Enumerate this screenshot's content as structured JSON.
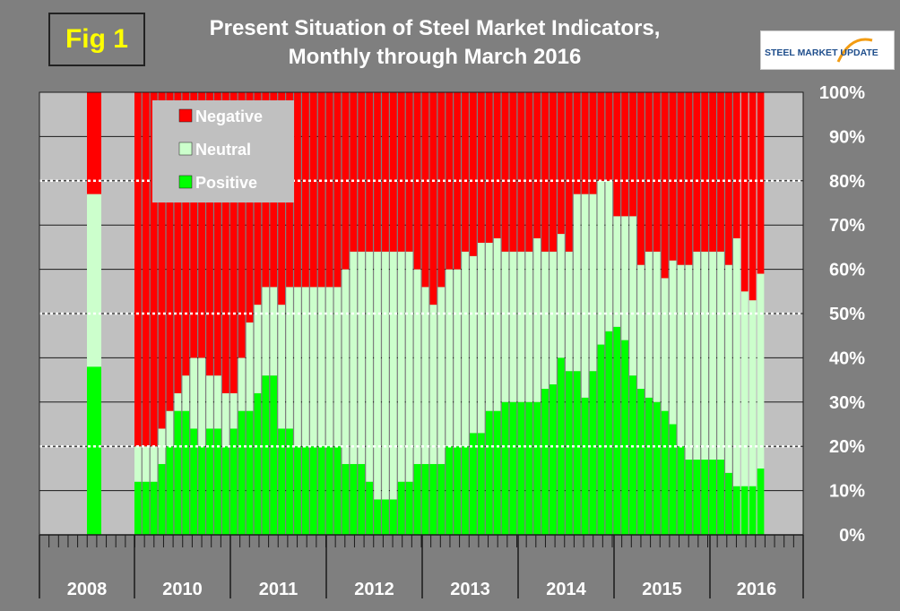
{
  "figure": {
    "badge": "Fig 1",
    "title_line1": "Present Situation of Steel Market Indicators,",
    "title_line2": "Monthly through March 2016",
    "logo_text": "STEEL MARKET UPDATE"
  },
  "colors": {
    "negative": "#ff0000",
    "neutral": "#ccffcc",
    "positive": "#00ff00",
    "plot_background_gray": "#c0c0c0",
    "figure_background": "#7f7f7f",
    "badge_text": "#ffff00"
  },
  "chart_data": {
    "type": "bar",
    "stacked": true,
    "ylim": [
      0,
      100
    ],
    "yticks": [
      "0%",
      "10%",
      "20%",
      "30%",
      "40%",
      "50%",
      "60%",
      "70%",
      "80%",
      "90%",
      "100%"
    ],
    "reference_lines": [
      20,
      50,
      80
    ],
    "legend": {
      "placement": "top-left",
      "entries": [
        "Negative",
        "Neutral",
        "Positive"
      ]
    },
    "year_labels": [
      "2008",
      "2010",
      "2011",
      "2012",
      "2013",
      "2014",
      "2015",
      "2016"
    ],
    "series": [
      {
        "name": "Positive",
        "values": [
          38,
          12,
          12,
          12,
          16,
          20,
          28,
          28,
          24,
          20,
          24,
          24,
          20,
          24,
          28,
          28,
          32,
          36,
          36,
          24,
          24,
          20,
          20,
          20,
          20,
          20,
          20,
          16,
          16,
          16,
          12,
          8,
          8,
          8,
          12,
          12,
          16,
          16,
          16,
          16,
          20,
          20,
          20,
          23,
          23,
          28,
          28,
          30,
          30,
          30,
          30,
          30,
          33,
          34,
          40,
          37,
          37,
          31,
          37,
          43,
          46,
          47,
          44,
          36,
          33,
          31,
          30,
          28,
          25,
          20,
          17,
          17,
          17,
          17,
          17,
          14,
          11,
          11,
          11,
          15
        ]
      },
      {
        "name": "Neutral",
        "values": [
          39,
          8,
          8,
          8,
          8,
          8,
          4,
          8,
          16,
          20,
          12,
          12,
          12,
          8,
          12,
          20,
          20,
          20,
          20,
          28,
          32,
          36,
          36,
          36,
          36,
          36,
          36,
          44,
          48,
          48,
          52,
          56,
          56,
          56,
          52,
          52,
          44,
          40,
          36,
          40,
          40,
          40,
          44,
          40,
          43,
          38,
          39,
          34,
          34,
          34,
          34,
          37,
          31,
          30,
          28,
          27,
          40,
          46,
          40,
          37,
          34,
          25,
          28,
          36,
          28,
          33,
          34,
          30,
          37,
          41,
          44,
          47,
          47,
          47,
          47,
          47,
          56,
          44,
          42,
          44
        ]
      },
      {
        "name": "Negative",
        "values": [
          23,
          80,
          80,
          80,
          76,
          72,
          68,
          64,
          60,
          60,
          64,
          64,
          68,
          68,
          60,
          52,
          48,
          44,
          44,
          48,
          44,
          44,
          44,
          44,
          44,
          44,
          44,
          40,
          36,
          36,
          36,
          36,
          36,
          36,
          36,
          36,
          40,
          44,
          48,
          44,
          40,
          40,
          36,
          37,
          34,
          34,
          33,
          36,
          36,
          36,
          36,
          33,
          36,
          36,
          32,
          36,
          23,
          23,
          23,
          20,
          20,
          28,
          28,
          28,
          39,
          36,
          36,
          42,
          38,
          39,
          39,
          36,
          36,
          36,
          36,
          39,
          33,
          45,
          47,
          41
        ]
      }
    ]
  }
}
